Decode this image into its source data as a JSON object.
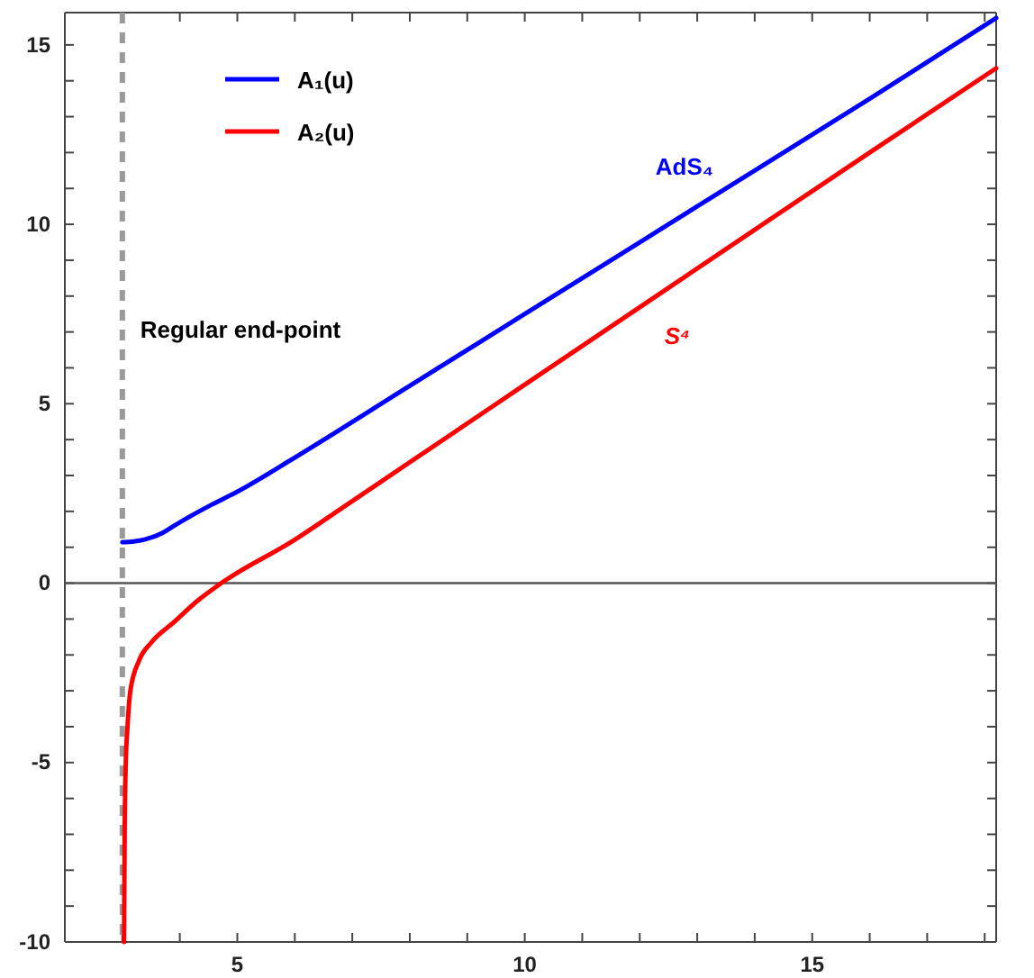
{
  "chart_data": {
    "type": "line",
    "xlim": [
      2,
      18.2
    ],
    "ylim": [
      -10,
      15.9
    ],
    "xticks": [
      {
        "value": 2,
        "label": null
      },
      {
        "value": 3,
        "label": null
      },
      {
        "value": 4,
        "label": null
      },
      5,
      {
        "value": 6,
        "label": null
      },
      {
        "value": 7,
        "label": null
      },
      {
        "value": 8,
        "label": null
      },
      {
        "value": 9,
        "label": null
      },
      10,
      {
        "value": 11,
        "label": null
      },
      {
        "value": 12,
        "label": null
      },
      {
        "value": 13,
        "label": null
      },
      {
        "value": 14,
        "label": null
      },
      15,
      {
        "value": 16,
        "label": null
      },
      {
        "value": 17,
        "label": null
      },
      {
        "value": 18,
        "label": null
      }
    ],
    "yticks": [
      -10,
      {
        "value": -9,
        "label": null
      },
      {
        "value": -8,
        "label": null
      },
      {
        "value": -7,
        "label": null
      },
      {
        "value": -6,
        "label": null
      },
      -5,
      {
        "value": -4,
        "label": null
      },
      {
        "value": -3,
        "label": null
      },
      {
        "value": -2,
        "label": null
      },
      {
        "value": -1,
        "label": null
      },
      0,
      {
        "value": 1,
        "label": null
      },
      {
        "value": 2,
        "label": null
      },
      {
        "value": 3,
        "label": null
      },
      {
        "value": 4,
        "label": null
      },
      5,
      {
        "value": 6,
        "label": null
      },
      {
        "value": 7,
        "label": null
      },
      {
        "value": 8,
        "label": null
      },
      {
        "value": 9,
        "label": null
      },
      10,
      {
        "value": 11,
        "label": null
      },
      {
        "value": 12,
        "label": null
      },
      {
        "value": 13,
        "label": null
      },
      {
        "value": 14,
        "label": null
      },
      15
    ],
    "series": [
      {
        "name": "A₁(u)",
        "color": "#0000ff",
        "x": [
          3,
          3.2,
          3.4,
          3.7,
          3.9,
          4.2,
          4.57,
          5,
          6,
          8,
          10,
          12,
          14,
          16,
          18.2
        ],
        "values": [
          1.14,
          1.16,
          1.22,
          1.4,
          1.6,
          1.88,
          2.2,
          2.55,
          3.5,
          5.5,
          7.5,
          9.5,
          11.5,
          13.5,
          15.75
        ]
      },
      {
        "name": "A₂(u)",
        "color": "#ff0000",
        "x": [
          3.03,
          3.04,
          3.06,
          3.09,
          3.14,
          3.29,
          3.5,
          3.91,
          4.3,
          4.72,
          5.98,
          6.92,
          8,
          10,
          12,
          14,
          16,
          18.2
        ],
        "values": [
          -10,
          -7,
          -5,
          -4,
          -3,
          -2.16,
          -1.66,
          -1.07,
          -0.5,
          0,
          1.19,
          2.2,
          3.37,
          5.53,
          7.69,
          9.85,
          12,
          14.35
        ]
      }
    ],
    "ref_lines": [
      {
        "axis": "x",
        "value": 3,
        "label": "Regular end-point",
        "color": "#999999",
        "line_style": "dashed"
      },
      {
        "axis": "y",
        "value": 0,
        "color": "#555555",
        "line_style": "solid"
      }
    ],
    "annotations": [
      "AdS₄",
      "S⁴"
    ],
    "legend": "top left",
    "grid": false,
    "marker": "none",
    "line_style": "solid"
  }
}
